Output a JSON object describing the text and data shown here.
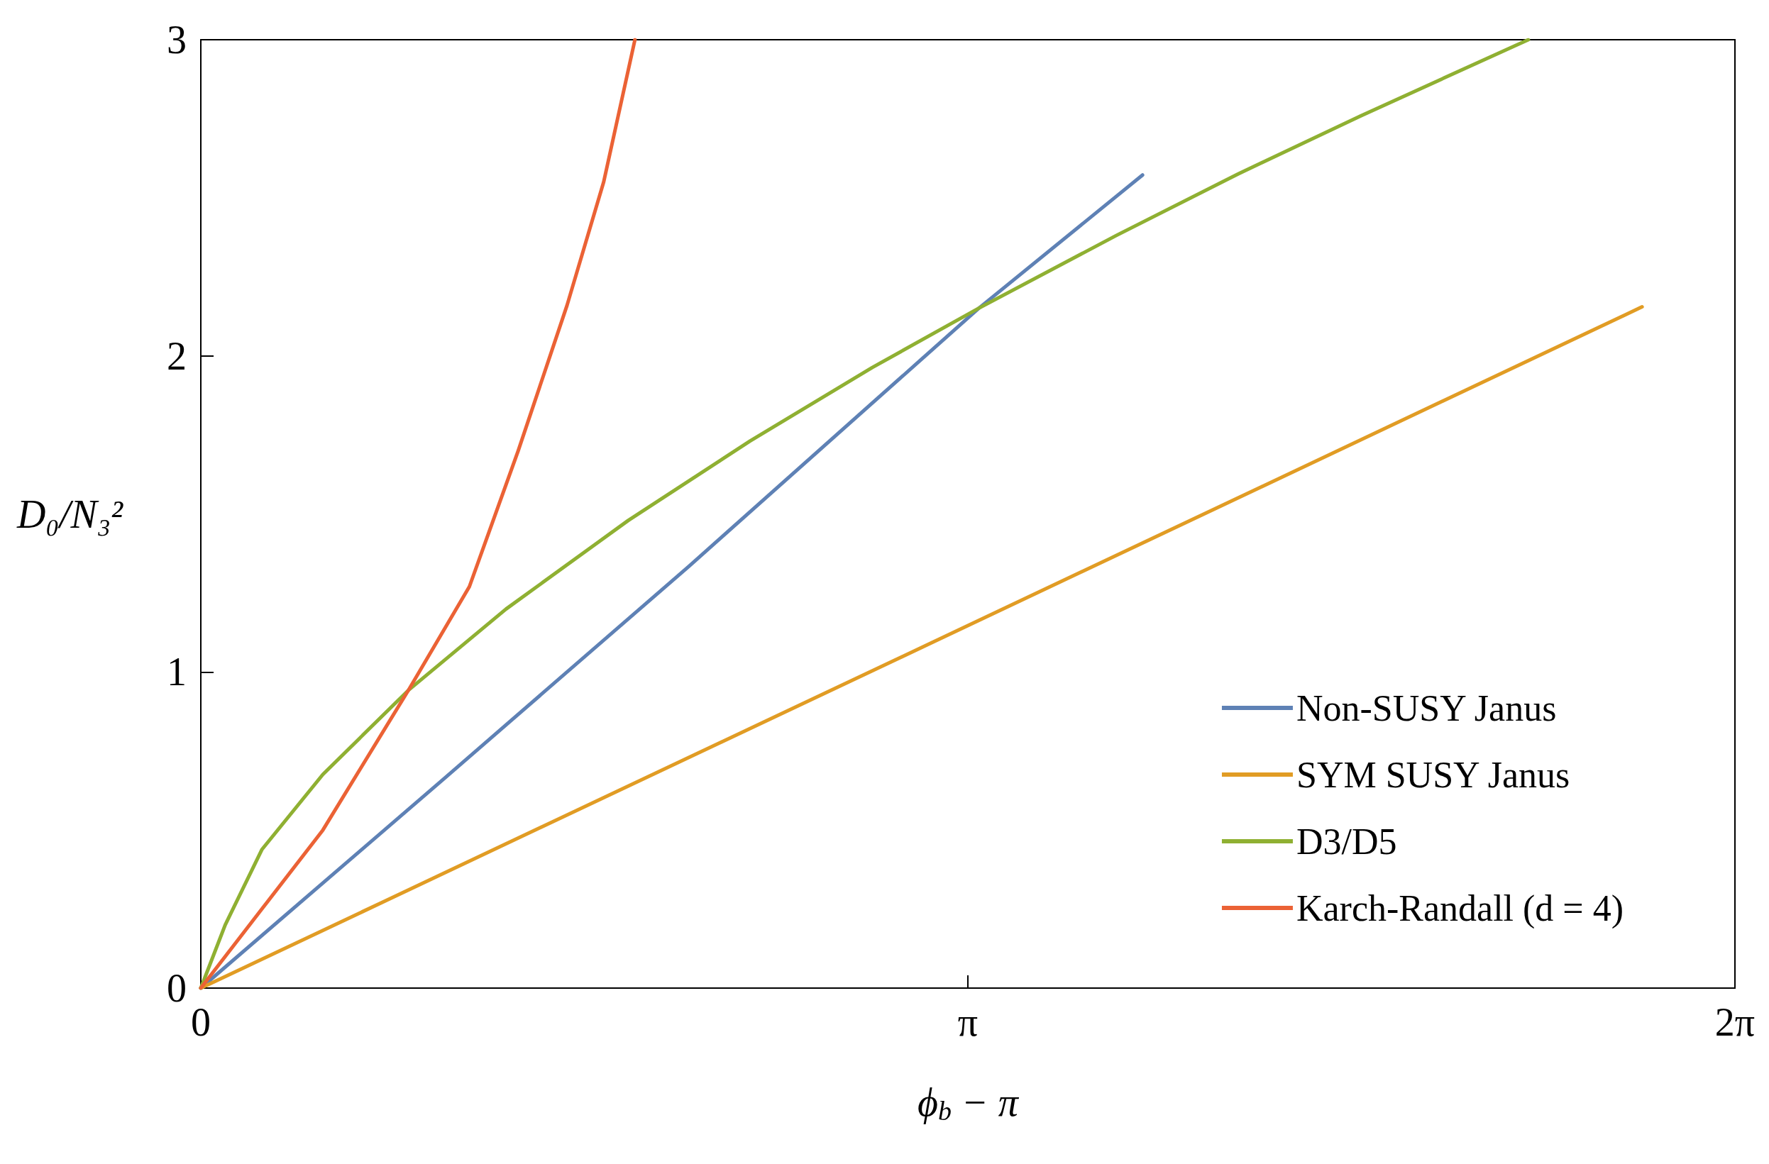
{
  "chart_data": {
    "type": "line",
    "xlabel": "ϕ$_{b}$ − π",
    "ylabel": "D₀/N₃²",
    "xlim": [
      0,
      6.2832
    ],
    "xticks": [
      0,
      {
        "value": 3.1416,
        "label": "π"
      },
      {
        "value": 6.2832,
        "label": "2π"
      }
    ],
    "ylim": [
      0,
      3
    ],
    "yticks": [
      0,
      1,
      2,
      3
    ],
    "legend": "bottom right",
    "line_style": "solid",
    "series": [
      {
        "name": "Non-SUSY Janus",
        "color": "#5e81b5",
        "x": [
          0,
          1,
          2,
          3.187,
          3.857
        ],
        "values": [
          0,
          0.665,
          1.335,
          2.151,
          2.572
        ]
      },
      {
        "name": "SYM SUSY Janus",
        "color": "#e19c24",
        "x": [
          0,
          3,
          5.903
        ],
        "values": [
          0,
          1.095,
          2.155
        ]
      },
      {
        "name": "D3/D5",
        "color": "#8fb032",
        "x": [
          0,
          0.1,
          0.25,
          0.5,
          0.85,
          1.25,
          1.75,
          2.25,
          2.75,
          3.187,
          3.75,
          4.25,
          4.75,
          5.437
        ],
        "values": [
          0,
          0.2,
          0.438,
          0.676,
          0.942,
          1.199,
          1.479,
          1.731,
          1.963,
          2.151,
          2.381,
          2.576,
          2.759,
          3
        ]
      },
      {
        "name": "Karch-Randall (d = 4)",
        "color": "#eb6235",
        "x": [
          0,
          0.25,
          0.5,
          0.85,
          1.1,
          1.3,
          1.5,
          1.65,
          1.778
        ],
        "values": [
          0,
          0.25,
          0.5,
          0.942,
          1.27,
          1.7,
          2.16,
          2.55,
          3
        ]
      }
    ]
  }
}
